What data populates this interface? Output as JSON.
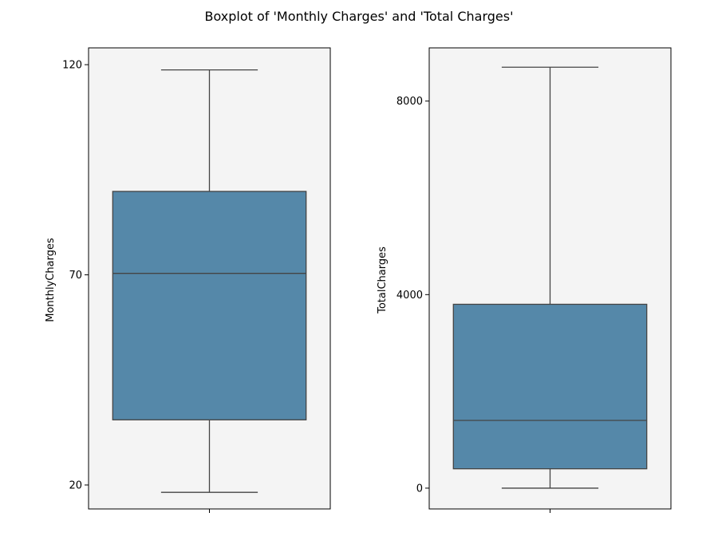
{
  "figure": {
    "title": "Boxplot of 'Monthly Charges' and 'Total Charges'",
    "background": "#ffffff",
    "plot_background": "#f4f4f4",
    "box_color": "#5588a9",
    "line_color": "#444444"
  },
  "chart_data": [
    {
      "type": "box",
      "title": "",
      "xlabel": "",
      "ylabel": "MonthlyCharges",
      "ylim": [
        14.3,
        124.0
      ],
      "yticks": [
        20,
        70,
        120
      ],
      "grid": false,
      "stats": {
        "min": 18.25,
        "q1": 35.5,
        "median": 70.35,
        "q3": 89.85,
        "max": 118.75
      }
    },
    {
      "type": "box",
      "title": "",
      "xlabel": "",
      "ylabel": "TotalCharges",
      "ylim": [
        -430,
        9100
      ],
      "yticks": [
        0,
        4000,
        8000
      ],
      "grid": false,
      "stats": {
        "min": 0,
        "q1": 400,
        "median": 1400,
        "q3": 3800,
        "max": 8700
      }
    }
  ]
}
